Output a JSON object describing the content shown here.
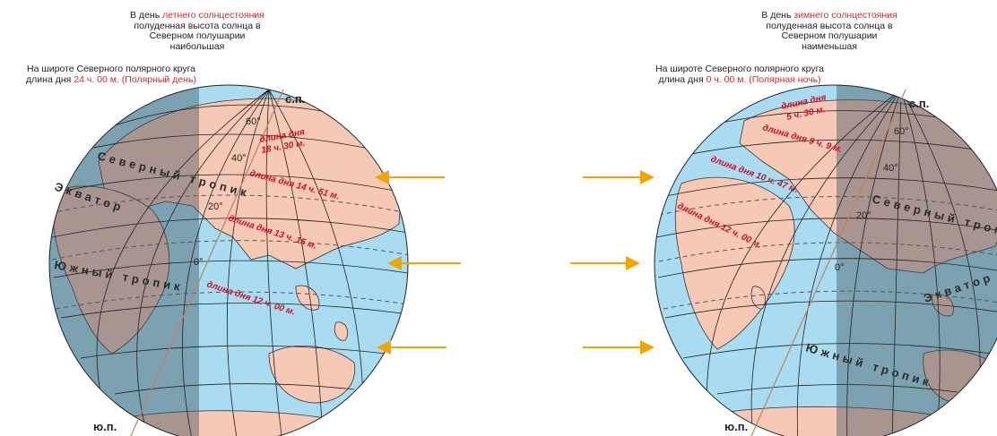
{
  "left": {
    "caption": {
      "line1_prefix": "В день ",
      "line1_highlight": "летнего солнцестояния",
      "line2": "полуденная высота солнца в",
      "line3": "Северном полушарии",
      "line4": "наибольшая"
    },
    "latitude_note": {
      "line1": "На широте Северного полярного круга",
      "line2_prefix": "длина дня ",
      "line2_highlight": "24 ч. 00 м. (Полярный день)"
    },
    "north_pole": "с.п.",
    "south_pole": "ю.п.",
    "lat_labels": [
      "60°",
      "40°",
      "20°",
      "0°"
    ],
    "zones": {
      "north_tropic": "Северный тропик",
      "equator": "Экватор",
      "south_tropic": "Южный тропик"
    },
    "day_lengths": [
      "длина дня",
      "18 ч. 30 м.",
      "длина дня 14 ч. 51 м.",
      "длина дня 13 ч. 15 м.",
      "длина дня 12 ч. 00 м."
    ]
  },
  "right": {
    "caption": {
      "line1_prefix": "В день ",
      "line1_highlight": "зимнего солнцестояния",
      "line2": "полуденная высота солнца в",
      "line3": "Северном полушарии",
      "line4": "наименьшая"
    },
    "latitude_note": {
      "line1": "На широте Северного полярного круга",
      "line2_prefix": "длина дня ",
      "line2_highlight": "0 ч. 00 м. (Полярная ночь)"
    },
    "north_pole": "с.п.",
    "south_pole": "ю.п.",
    "lat_labels": [
      "60°",
      "40°",
      "20°",
      "0°"
    ],
    "zones": {
      "north_tropic": "Северный тропик",
      "equator": "Экватор",
      "south_tropic": "Южный тропик"
    },
    "day_lengths": [
      "длина дня",
      "5 ч. 30 м.",
      "длина дня 9 ч. 9 м.",
      "длина дня 10 ч. 47 м.",
      "длина дня 12 ч. 00 м."
    ]
  },
  "colors": {
    "ocean": "#a9dcf0",
    "land_lit": "#f6c9b6",
    "land_dark": "#9c7868",
    "ocean_dark": "#6d9cae",
    "sun_arrow": "#f0a500",
    "highlight": "#d42a2a"
  }
}
